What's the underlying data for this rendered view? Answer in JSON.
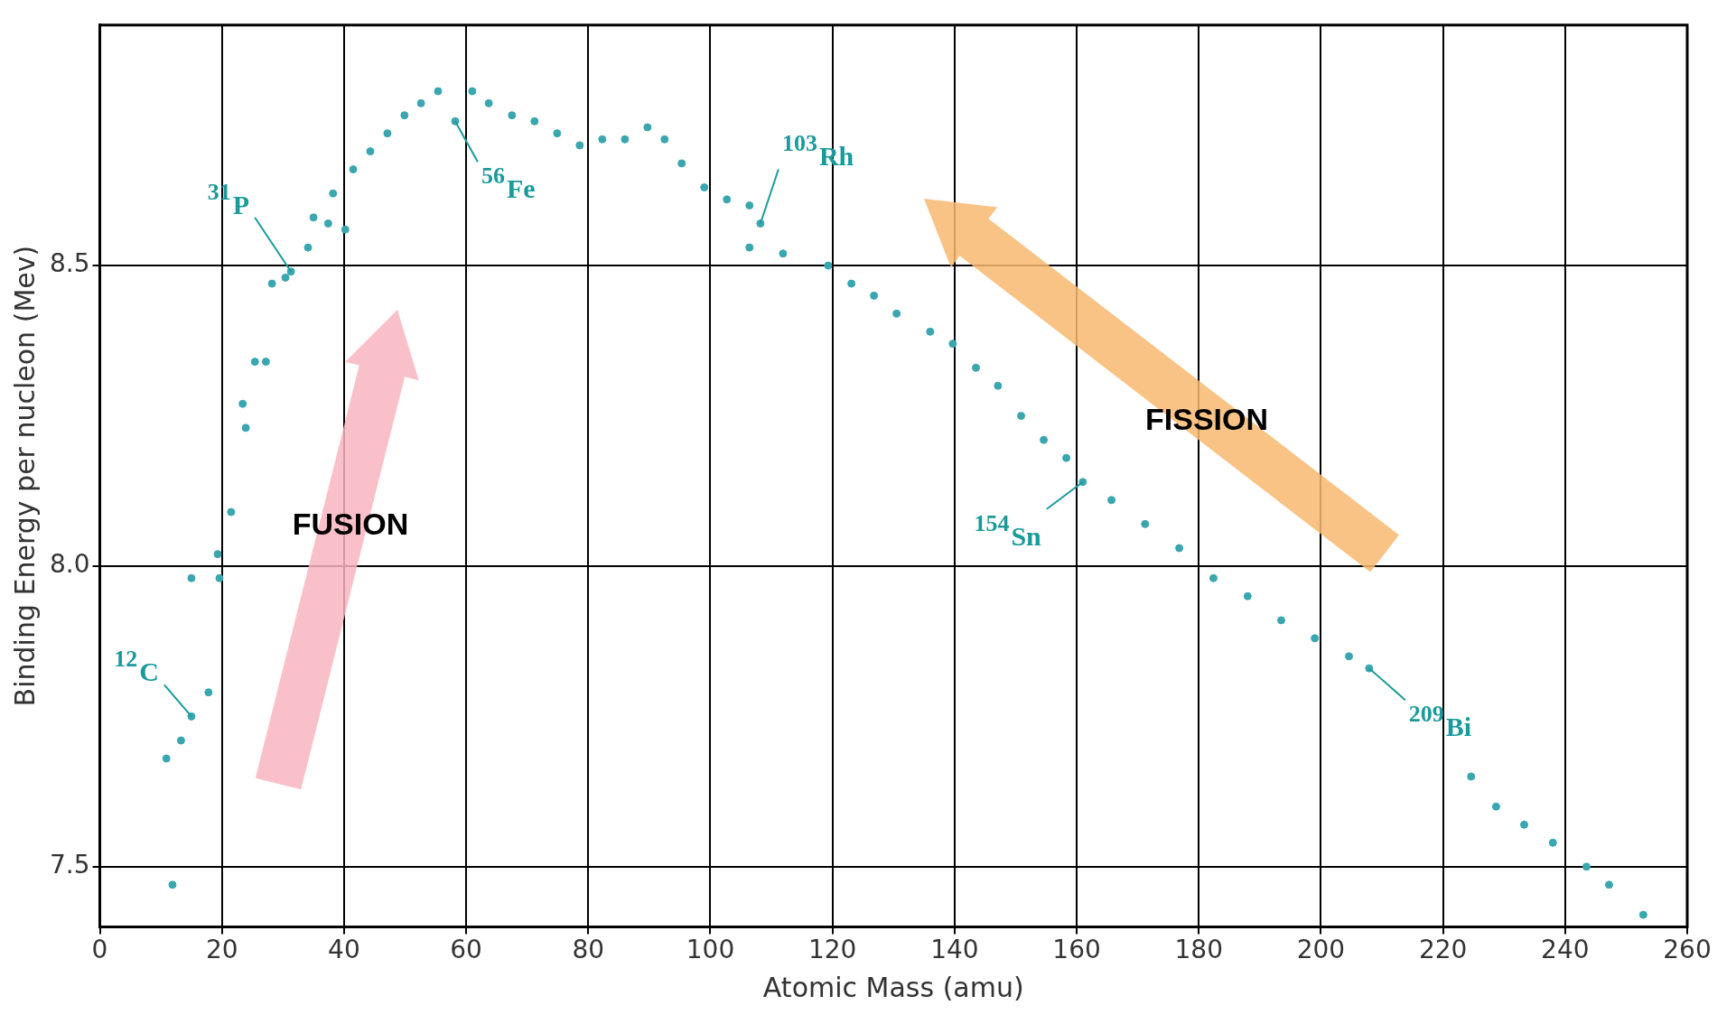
{
  "chart_data": {
    "type": "scatter",
    "xlabel": "Atomic Mass (amu)",
    "ylabel": "Binding Energy per nucleon (Mev)",
    "x": [
      10.9,
      11.9,
      13.3,
      15.0,
      17.8,
      15.0,
      19.6,
      19.3,
      21.5,
      23.9,
      23.4,
      25.4,
      27.2,
      28.2,
      30.4,
      31.3,
      34.1,
      35.0,
      37.4,
      40.2,
      38.2,
      41.5,
      44.3,
      47.1,
      49.9,
      52.6,
      55.4,
      58.2,
      61.0,
      63.7,
      67.5,
      71.2,
      74.9,
      78.6,
      82.3,
      86.0,
      89.7,
      92.5,
      95.3,
      99.0,
      102.7,
      106.4,
      108.2,
      106.4,
      111.9,
      119.3,
      123.1,
      126.8,
      130.5,
      136.0,
      139.7,
      143.5,
      147.1,
      150.9,
      154.6,
      158.3,
      161.0,
      165.7,
      171.2,
      176.8,
      182.4,
      188.0,
      193.5,
      199.0,
      204.6,
      207.9,
      224.6,
      228.7,
      233.3,
      238.0,
      243.5,
      247.2,
      252.8
    ],
    "values": [
      7.68,
      7.47,
      7.71,
      7.75,
      7.79,
      7.98,
      7.98,
      8.02,
      8.09,
      8.23,
      8.27,
      8.34,
      8.34,
      8.47,
      8.48,
      8.49,
      8.53,
      8.58,
      8.57,
      8.56,
      8.62,
      8.66,
      8.69,
      8.72,
      8.75,
      8.77,
      8.79,
      8.74,
      8.79,
      8.77,
      8.75,
      8.74,
      8.72,
      8.7,
      8.71,
      8.71,
      8.73,
      8.71,
      8.67,
      8.63,
      8.61,
      8.6,
      8.57,
      8.53,
      8.52,
      8.5,
      8.47,
      8.45,
      8.42,
      8.39,
      8.37,
      8.33,
      8.3,
      8.25,
      8.21,
      8.18,
      8.14,
      8.11,
      8.07,
      8.03,
      7.98,
      7.95,
      7.91,
      7.88,
      7.85,
      7.83,
      7.65,
      7.6,
      7.57,
      7.54,
      7.5,
      7.47,
      7.42
    ],
    "color": "#3aa6b0",
    "marker": "circle",
    "xlim": [
      0,
      260
    ],
    "xticks": [
      0,
      20,
      40,
      60,
      80,
      100,
      120,
      140,
      160,
      180,
      200,
      220,
      240,
      260
    ],
    "ylim": [
      7.4,
      8.9
    ],
    "yticks": [
      7.5,
      {
        "value": 8,
        "label": "8.0"
      },
      8.5
    ],
    "grid": true,
    "annotations": [
      {
        "text": "$^{12}$C",
        "x": 15.0,
        "y": 7.75
      },
      {
        "text": "$^{31}$P",
        "x": 31.3,
        "y": 8.49
      },
      {
        "text": "$^{56}$Fe",
        "x": 58.2,
        "y": 8.74
      },
      {
        "text": "$^{103}$Rh",
        "x": 108.2,
        "y": 8.57
      },
      {
        "text": "$^{154}$Sn",
        "x": 161.0,
        "y": 8.14
      },
      {
        "text": "$^{209}$Bi",
        "x": 207.9,
        "y": 7.83
      },
      "FUSION",
      "FISSION"
    ]
  }
}
